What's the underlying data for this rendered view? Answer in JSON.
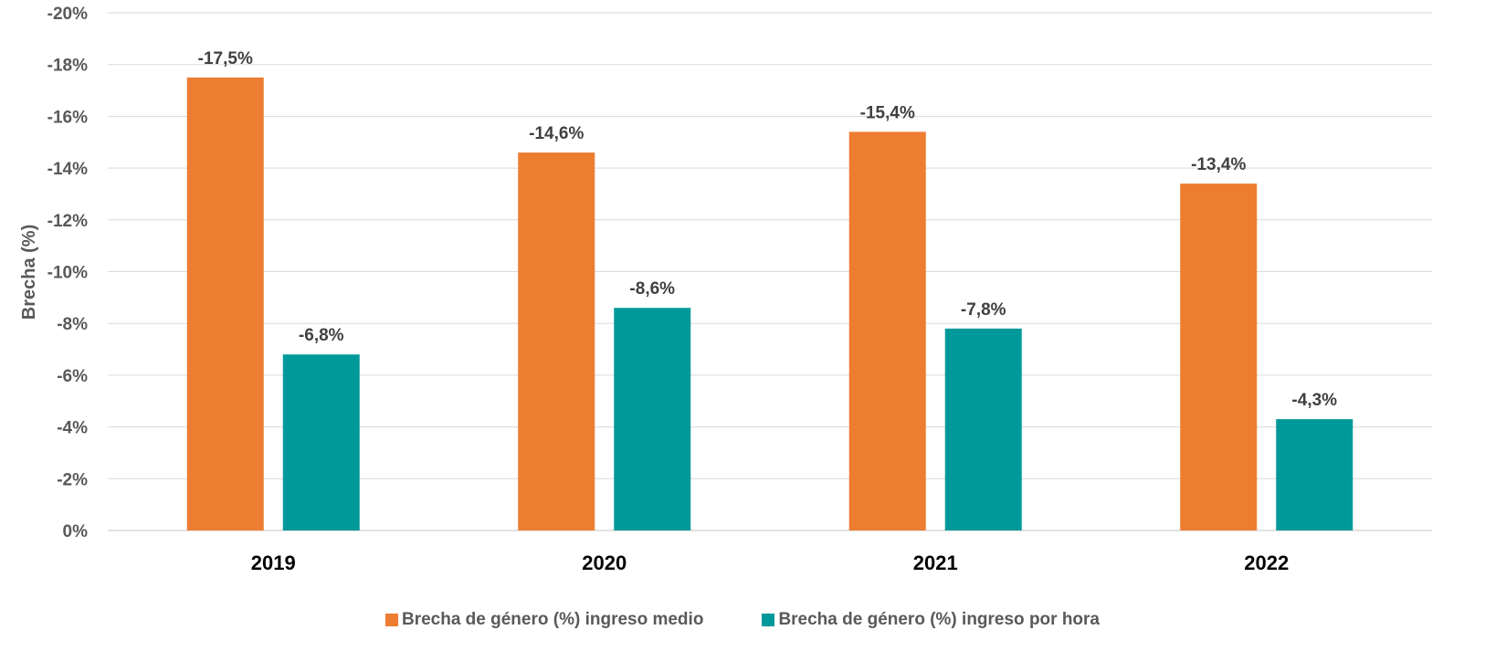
{
  "chart_data": {
    "type": "bar",
    "ylabel": "Brecha (%)",
    "ylim": [
      0,
      -20
    ],
    "ytick_labels": [
      "0%",
      "-2%",
      "-4%",
      "-6%",
      "-8%",
      "-10%",
      "-12%",
      "-14%",
      "-16%",
      "-18%",
      "-20%"
    ],
    "ytick_values": [
      0,
      -2,
      -4,
      -6,
      -8,
      -10,
      -12,
      -14,
      -16,
      -18,
      -20
    ],
    "categories": [
      "2019",
      "2020",
      "2021",
      "2022"
    ],
    "series": [
      {
        "name": "Brecha de género (%) ingreso medio",
        "color": "#ED7D31",
        "values": [
          -17.5,
          -14.6,
          -15.4,
          -13.4
        ],
        "labels": [
          "-17,5%",
          "-14,6%",
          "-15,4%",
          "-13,4%"
        ]
      },
      {
        "name": "Brecha de género (%) ingreso por hora",
        "color": "#009999",
        "values": [
          -6.8,
          -8.6,
          -7.8,
          -4.3
        ],
        "labels": [
          "-6,8%",
          "-8,6%",
          "-7,8%",
          "-4,3%"
        ]
      }
    ],
    "grid": true,
    "legend_position": "bottom"
  }
}
